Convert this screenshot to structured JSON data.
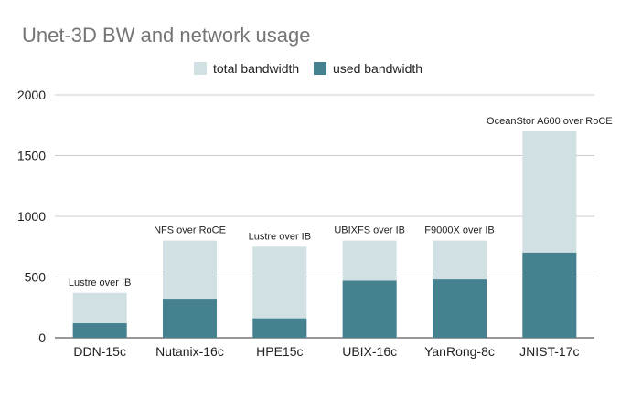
{
  "chart_data": {
    "type": "bar",
    "title": "Unet-3D BW and network usage",
    "categories": [
      "DDN-15c",
      "Nutanix-16c",
      "HPE15c",
      "UBIX-16c",
      "YanRong-8c",
      "JNIST-17c"
    ],
    "annotations": [
      "Lustre over IB",
      "NFS over RoCE",
      "Lustre over IB",
      "UBIXFS over IB",
      "F9000X over IB",
      "OceanStor A600 over RoCE"
    ],
    "series": [
      {
        "name": "total bandwidth",
        "values": [
          370,
          800,
          750,
          800,
          800,
          1700
        ],
        "color": "#d0e0e3"
      },
      {
        "name": "used bandwidth",
        "values": [
          120,
          315,
          160,
          470,
          480,
          700
        ],
        "color": "#45818e"
      }
    ],
    "overlapped": true,
    "xlabel": "",
    "ylabel": "",
    "ylim": [
      0,
      2000
    ],
    "yticks": [
      0,
      500,
      1000,
      1500,
      2000
    ],
    "grid": true,
    "legend_position": "top-center"
  }
}
